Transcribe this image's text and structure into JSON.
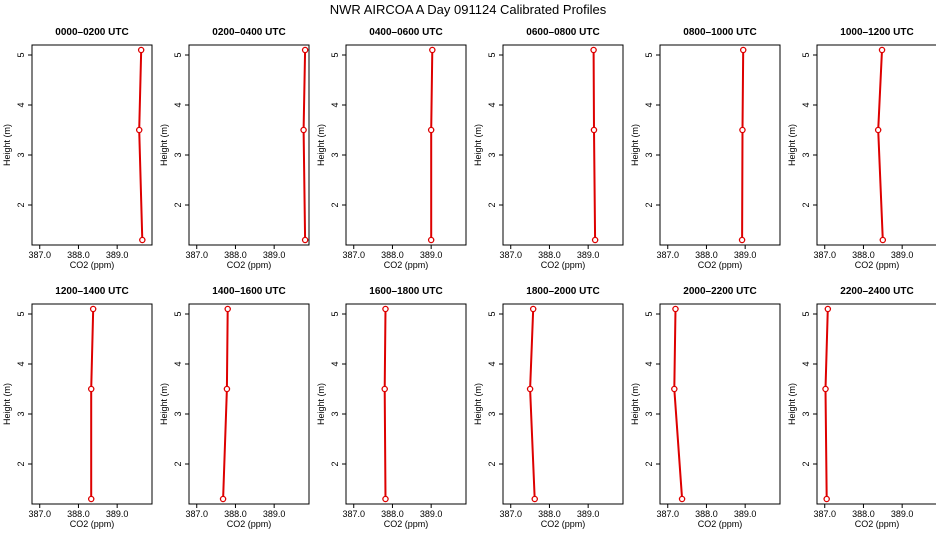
{
  "figure_title": "NWR AIRCOA A  Day 091124  Calibrated Profiles",
  "chart_data": [
    {
      "type": "line",
      "title": "0000–0200 UTC",
      "xlabel": "CO2 (ppm)",
      "ylabel": "Height (m)",
      "xlim": [
        386.8,
        389.9
      ],
      "ylim": [
        1.2,
        5.2
      ],
      "xticks": [
        "387.0",
        "388.0",
        "389.0"
      ],
      "yticks": [
        "2",
        "3",
        "4",
        "5"
      ],
      "series": [
        {
          "x": [
            389.62,
            389.57,
            389.65
          ],
          "y": [
            5.1,
            3.5,
            1.3
          ]
        }
      ]
    },
    {
      "type": "line",
      "title": "0200–0400 UTC",
      "xlabel": "CO2 (ppm)",
      "ylabel": "Height (m)",
      "xlim": [
        386.8,
        389.9
      ],
      "ylim": [
        1.2,
        5.2
      ],
      "xticks": [
        "387.0",
        "388.0",
        "389.0"
      ],
      "yticks": [
        "2",
        "3",
        "4",
        "5"
      ],
      "series": [
        {
          "x": [
            389.8,
            389.76,
            389.8
          ],
          "y": [
            5.1,
            3.5,
            1.3
          ]
        }
      ]
    },
    {
      "type": "line",
      "title": "0400–0600 UTC",
      "xlabel": "CO2 (ppm)",
      "ylabel": "Height (m)",
      "xlim": [
        386.8,
        389.9
      ],
      "ylim": [
        1.2,
        5.2
      ],
      "xticks": [
        "387.0",
        "388.0",
        "389.0"
      ],
      "yticks": [
        "2",
        "3",
        "4",
        "5"
      ],
      "series": [
        {
          "x": [
            389.03,
            389.0,
            389.0
          ],
          "y": [
            5.1,
            3.5,
            1.3
          ]
        }
      ]
    },
    {
      "type": "line",
      "title": "0600–0800 UTC",
      "xlabel": "CO2 (ppm)",
      "ylabel": "Height (m)",
      "xlim": [
        386.8,
        389.9
      ],
      "ylim": [
        1.2,
        5.2
      ],
      "xticks": [
        "387.0",
        "388.0",
        "389.0"
      ],
      "yticks": [
        "2",
        "3",
        "4",
        "5"
      ],
      "series": [
        {
          "x": [
            389.14,
            389.15,
            389.18
          ],
          "y": [
            5.1,
            3.5,
            1.3
          ]
        }
      ]
    },
    {
      "type": "line",
      "title": "0800–1000 UTC",
      "xlabel": "CO2 (ppm)",
      "ylabel": "Height (m)",
      "xlim": [
        386.8,
        389.9
      ],
      "ylim": [
        1.2,
        5.2
      ],
      "xticks": [
        "387.0",
        "388.0",
        "389.0"
      ],
      "yticks": [
        "2",
        "3",
        "4",
        "5"
      ],
      "series": [
        {
          "x": [
            388.95,
            388.93,
            388.92
          ],
          "y": [
            5.1,
            3.5,
            1.3
          ]
        }
      ]
    },
    {
      "type": "line",
      "title": "1000–1200 UTC",
      "xlabel": "CO2 (ppm)",
      "ylabel": "Height (m)",
      "xlim": [
        386.8,
        389.9
      ],
      "ylim": [
        1.2,
        5.2
      ],
      "xticks": [
        "387.0",
        "388.0",
        "389.0"
      ],
      "yticks": [
        "2",
        "3",
        "4",
        "5"
      ],
      "series": [
        {
          "x": [
            388.48,
            388.38,
            388.5
          ],
          "y": [
            5.1,
            3.5,
            1.3
          ]
        }
      ]
    },
    {
      "type": "line",
      "title": "1200–1400 UTC",
      "xlabel": "CO2 (ppm)",
      "ylabel": "Height (m)",
      "xlim": [
        386.8,
        389.9
      ],
      "ylim": [
        1.2,
        5.2
      ],
      "xticks": [
        "387.0",
        "388.0",
        "389.0"
      ],
      "yticks": [
        "2",
        "3",
        "4",
        "5"
      ],
      "series": [
        {
          "x": [
            388.38,
            388.33,
            388.33
          ],
          "y": [
            5.1,
            3.5,
            1.3
          ]
        }
      ]
    },
    {
      "type": "line",
      "title": "1400–1600 UTC",
      "xlabel": "CO2 (ppm)",
      "ylabel": "Height (m)",
      "xlim": [
        386.8,
        389.9
      ],
      "ylim": [
        1.2,
        5.2
      ],
      "xticks": [
        "387.0",
        "388.0",
        "389.0"
      ],
      "yticks": [
        "2",
        "3",
        "4",
        "5"
      ],
      "series": [
        {
          "x": [
            387.8,
            387.78,
            387.68
          ],
          "y": [
            5.1,
            3.5,
            1.3
          ]
        }
      ]
    },
    {
      "type": "line",
      "title": "1600–1800 UTC",
      "xlabel": "CO2 (ppm)",
      "ylabel": "Height (m)",
      "xlim": [
        386.8,
        389.9
      ],
      "ylim": [
        1.2,
        5.2
      ],
      "xticks": [
        "387.0",
        "388.0",
        "389.0"
      ],
      "yticks": [
        "2",
        "3",
        "4",
        "5"
      ],
      "series": [
        {
          "x": [
            387.82,
            387.8,
            387.82
          ],
          "y": [
            5.1,
            3.5,
            1.3
          ]
        }
      ]
    },
    {
      "type": "line",
      "title": "1800–2000 UTC",
      "xlabel": "CO2 (ppm)",
      "ylabel": "Height (m)",
      "xlim": [
        386.8,
        389.9
      ],
      "ylim": [
        1.2,
        5.2
      ],
      "xticks": [
        "387.0",
        "388.0",
        "389.0"
      ],
      "yticks": [
        "2",
        "3",
        "4",
        "5"
      ],
      "series": [
        {
          "x": [
            387.58,
            387.5,
            387.62
          ],
          "y": [
            5.1,
            3.5,
            1.3
          ]
        }
      ]
    },
    {
      "type": "line",
      "title": "2000–2200 UTC",
      "xlabel": "CO2 (ppm)",
      "ylabel": "Height (m)",
      "xlim": [
        386.8,
        389.9
      ],
      "ylim": [
        1.2,
        5.2
      ],
      "xticks": [
        "387.0",
        "388.0",
        "389.0"
      ],
      "yticks": [
        "2",
        "3",
        "4",
        "5"
      ],
      "series": [
        {
          "x": [
            387.2,
            387.17,
            387.37
          ],
          "y": [
            5.1,
            3.5,
            1.3
          ]
        }
      ]
    },
    {
      "type": "line",
      "title": "2200–2400 UTC",
      "xlabel": "CO2 (ppm)",
      "ylabel": "Height (m)",
      "xlim": [
        386.8,
        389.9
      ],
      "ylim": [
        1.2,
        5.2
      ],
      "xticks": [
        "387.0",
        "388.0",
        "389.0"
      ],
      "yticks": [
        "2",
        "3",
        "4",
        "5"
      ],
      "series": [
        {
          "x": [
            387.08,
            387.02,
            387.05
          ],
          "y": [
            5.1,
            3.5,
            1.3
          ]
        }
      ]
    }
  ],
  "colors": {
    "series_line": "#dd0000",
    "axes": "#000000",
    "background": "#ffffff"
  }
}
